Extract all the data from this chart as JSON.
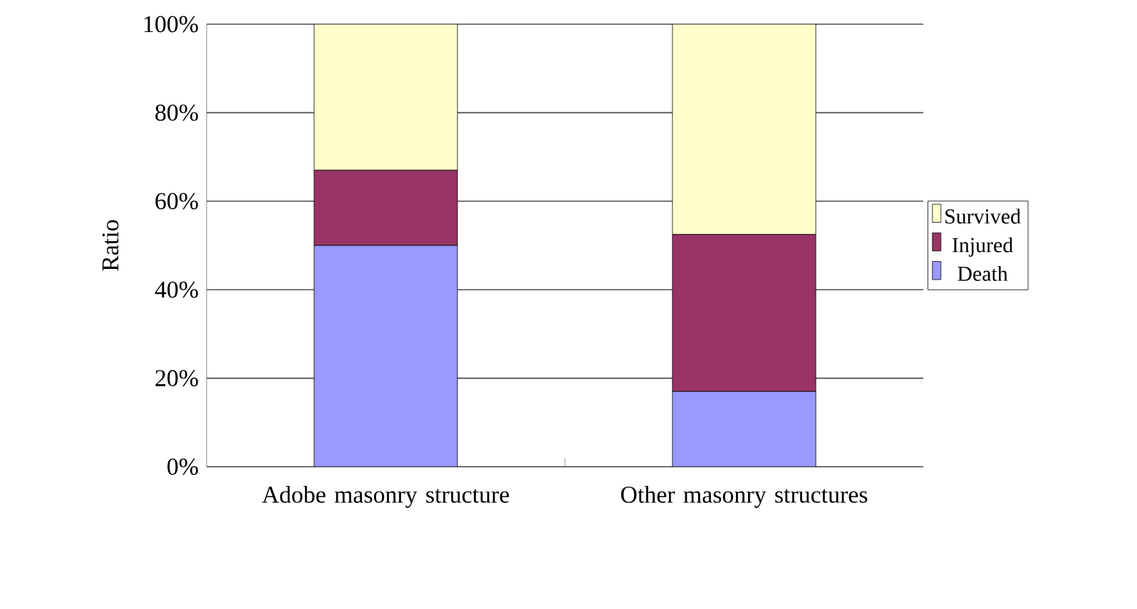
{
  "chart_data": {
    "type": "bar",
    "stacked": true,
    "ylabel": "Ratio",
    "categories": [
      "Adobe masonry structure",
      "Other masonry structures"
    ],
    "series": [
      {
        "name": "Death",
        "color": "#9999ff",
        "values": [
          50,
          17
        ]
      },
      {
        "name": "Injured",
        "color": "#993366",
        "values": [
          17,
          35.5
        ]
      },
      {
        "name": "Survived",
        "color": "#ffffcc",
        "values": [
          33,
          47.5
        ]
      }
    ],
    "ylim": [
      0,
      100
    ],
    "yticks": [
      {
        "value": 0,
        "label": "0%"
      },
      {
        "value": 20,
        "label": "20%"
      },
      {
        "value": 40,
        "label": "40%"
      },
      {
        "value": 60,
        "label": "60%"
      },
      {
        "value": 80,
        "label": "80%"
      },
      {
        "value": 100,
        "label": "100%"
      }
    ],
    "grid": "y",
    "legend": "right"
  }
}
